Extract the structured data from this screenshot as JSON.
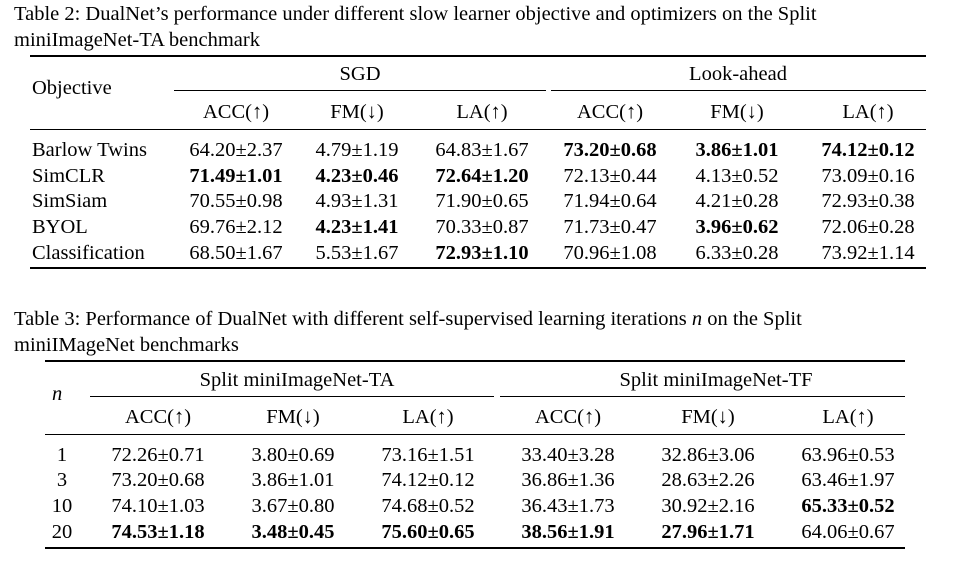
{
  "table2": {
    "caption_line1": "Table 2: DualNet’s performance under different slow learner objective and optimizers on the Split",
    "caption_line2": "miniImageNet-TA benchmark",
    "header": {
      "objective": "Objective",
      "group1": "SGD",
      "group2": "Look-ahead",
      "metrics": [
        "ACC(↑)",
        "FM(↓)",
        "LA(↑)",
        "ACC(↑)",
        "FM(↓)",
        "LA(↑)"
      ]
    },
    "rows": [
      {
        "label": "Barlow Twins",
        "values": [
          "64.20±2.37",
          "4.79±1.19",
          "64.83±1.67",
          "73.20±0.68",
          "3.86±1.01",
          "74.12±0.12"
        ],
        "bold": [
          false,
          false,
          false,
          true,
          true,
          true
        ]
      },
      {
        "label": "SimCLR",
        "values": [
          "71.49±1.01",
          "4.23±0.46",
          "72.64±1.20",
          "72.13±0.44",
          "4.13±0.52",
          "73.09±0.16"
        ],
        "bold": [
          true,
          true,
          true,
          false,
          false,
          false
        ]
      },
      {
        "label": "SimSiam",
        "values": [
          "70.55±0.98",
          "4.93±1.31",
          "71.90±0.65",
          "71.94±0.64",
          "4.21±0.28",
          "72.93±0.38"
        ],
        "bold": [
          false,
          false,
          false,
          false,
          false,
          false
        ]
      },
      {
        "label": "BYOL",
        "values": [
          "69.76±2.12",
          "4.23±1.41",
          "70.33±0.87",
          "71.73±0.47",
          "3.96±0.62",
          "72.06±0.28"
        ],
        "bold": [
          false,
          true,
          false,
          false,
          true,
          false
        ]
      },
      {
        "label": "Classification",
        "values": [
          "68.50±1.67",
          "5.53±1.67",
          "72.93±1.10",
          "70.96±1.08",
          "6.33±0.28",
          "73.92±1.14"
        ],
        "bold": [
          false,
          false,
          true,
          false,
          false,
          false
        ]
      }
    ]
  },
  "table3": {
    "caption_part1": "Table 3: Performance of DualNet with different self-supervised learning iterations",
    "caption_var": "n",
    "caption_part2": "on the Split",
    "caption_line2": "miniIMageNet benchmarks",
    "header": {
      "n_label": "n",
      "group1": "Split miniImageNet-TA",
      "group2": "Split miniImageNet-TF",
      "metrics": [
        "ACC(↑)",
        "FM(↓)",
        "LA(↑)",
        "ACC(↑)",
        "FM(↓)",
        "LA(↑)"
      ]
    },
    "rows": [
      {
        "label": "1",
        "values": [
          "72.26±0.71",
          "3.80±0.69",
          "73.16±1.51",
          "33.40±3.28",
          "32.86±3.06",
          "63.96±0.53"
        ],
        "bold": [
          false,
          false,
          false,
          false,
          false,
          false
        ]
      },
      {
        "label": "3",
        "values": [
          "73.20±0.68",
          "3.86±1.01",
          "74.12±0.12",
          "36.86±1.36",
          "28.63±2.26",
          "63.46±1.97"
        ],
        "bold": [
          false,
          false,
          false,
          false,
          false,
          false
        ]
      },
      {
        "label": "10",
        "values": [
          "74.10±1.03",
          "3.67±0.80",
          "74.68±0.52",
          "36.43±1.73",
          "30.92±2.16",
          "65.33±0.52"
        ],
        "bold": [
          false,
          false,
          false,
          false,
          false,
          true
        ]
      },
      {
        "label": "20",
        "values": [
          "74.53±1.18",
          "3.48±0.45",
          "75.60±0.65",
          "38.56±1.91",
          "27.96±1.71",
          "64.06±0.67"
        ],
        "bold": [
          true,
          true,
          true,
          true,
          true,
          false
        ]
      }
    ]
  }
}
